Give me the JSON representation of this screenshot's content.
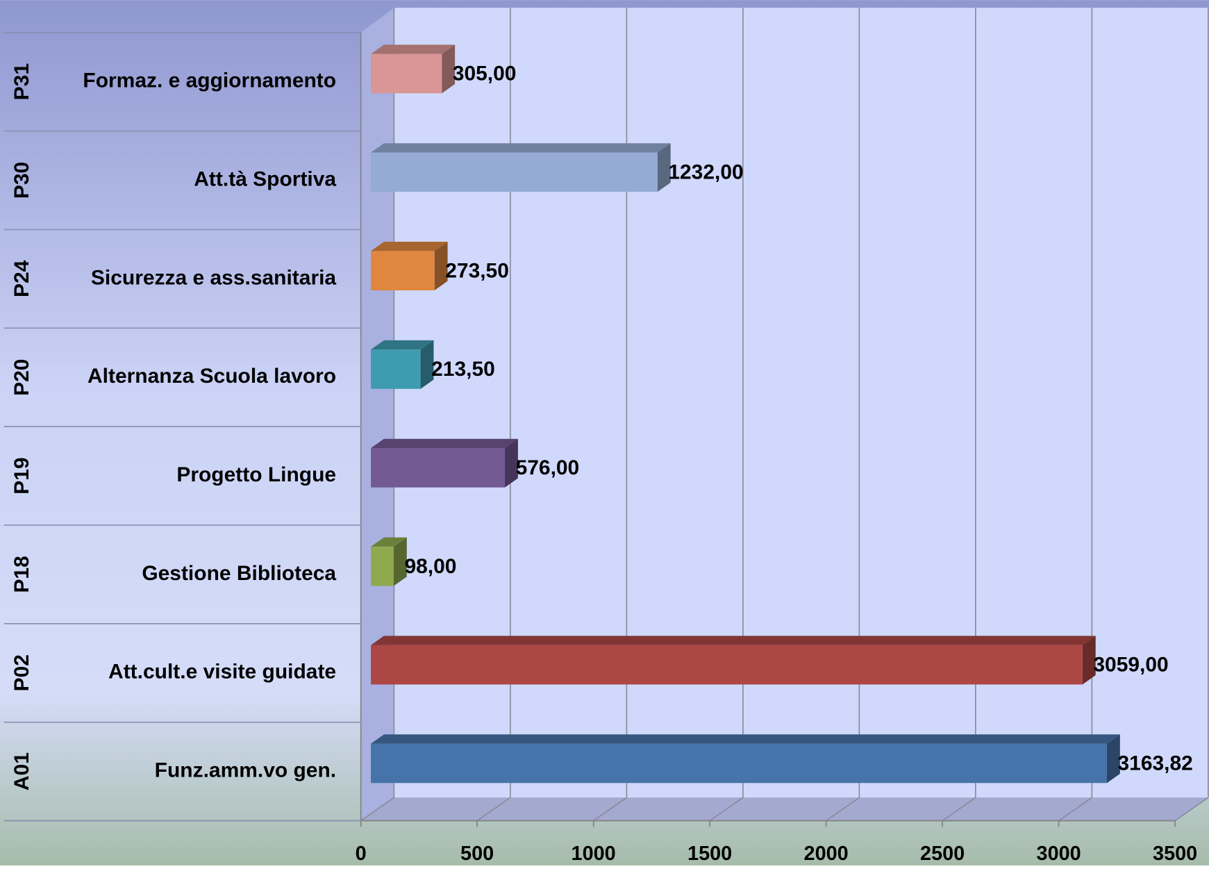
{
  "chart_data": {
    "type": "bar",
    "orientation": "horizontal",
    "style": "3d",
    "groups": [
      "P31",
      "P30",
      "P24",
      "P20",
      "P19",
      "P18",
      "P02",
      "A01"
    ],
    "categories": [
      "Formaz. e aggiornamento",
      "Att.tà Sportiva",
      "Sicurezza e ass.sanitaria",
      "Alternanza Scuola lavoro",
      "Progetto Lingue",
      "Gestione Biblioteca",
      "Att.cult.e visite guidate",
      "Funz.amm.vo gen."
    ],
    "values": [
      305,
      1232,
      273.5,
      213.5,
      576,
      98,
      3059,
      3163.82
    ],
    "value_labels": [
      "305,00",
      "1232,00",
      "273,50",
      "213,50",
      "576,00",
      "98,00",
      "3059,00",
      "3163,82"
    ],
    "colors": [
      "#d99694",
      "#95abd4",
      "#e0873f",
      "#3f9bb0",
      "#735a94",
      "#8faa4e",
      "#ad4744",
      "#4673a9"
    ],
    "xlim": [
      0,
      3500
    ],
    "xticks": [
      0,
      500,
      1000,
      1500,
      2000,
      2500,
      3000,
      3500
    ],
    "grid": true
  }
}
